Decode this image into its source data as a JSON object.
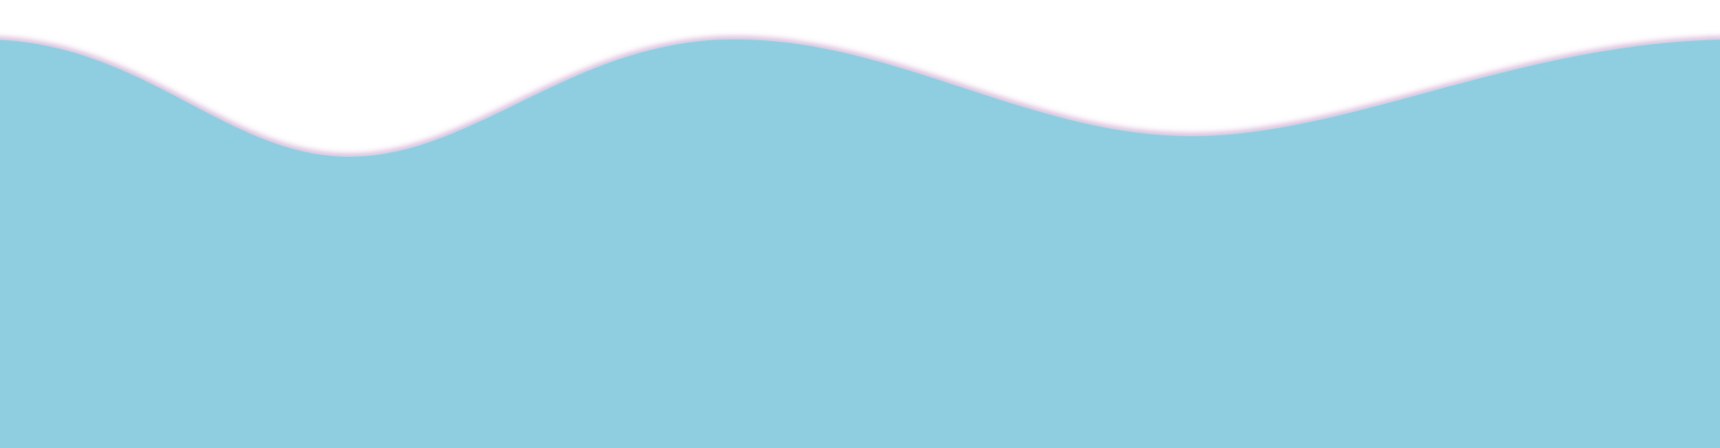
{
  "wave": {
    "fill_color": "#8fcde0",
    "glow_color": "#c79bc6",
    "background_color": "#ffffff"
  }
}
